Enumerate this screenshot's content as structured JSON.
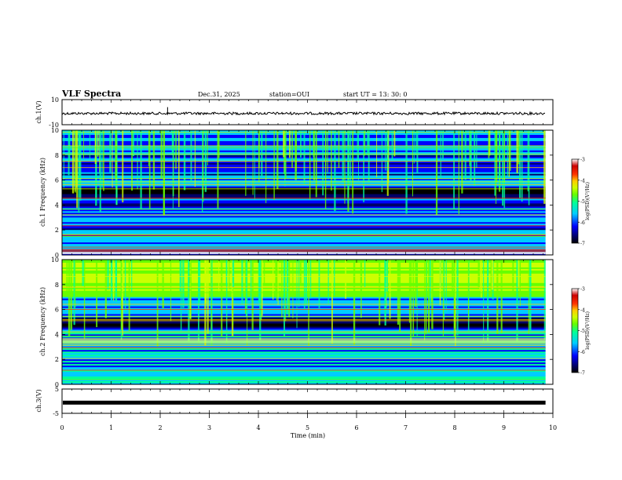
{
  "header": {
    "title": "VLF Spectra",
    "date": "Dec.31, 2025",
    "station": "station=OUI",
    "start_ut": "start  UT  =   13: 30: 0"
  },
  "chart_data": [
    {
      "type": "line",
      "name": "ch1-waveform",
      "ylabel": "ch.1(V)",
      "ylim": [
        -10,
        10
      ],
      "ytick_labels": [
        "10",
        "-10"
      ],
      "xlim": [
        0,
        10
      ],
      "level": -1.0,
      "end_x": 9.85
    },
    {
      "type": "heatmap",
      "name": "ch1-spectrogram",
      "ylabel": "ch.1 Frequency (kHz)",
      "ylim": [
        0,
        10
      ],
      "ytick_labels": [
        "0",
        "2",
        "4",
        "6",
        "8",
        "10"
      ],
      "yticks": [
        0,
        2,
        4,
        6,
        8,
        10
      ],
      "xlim": [
        0,
        10
      ],
      "end_x": 9.85
    },
    {
      "type": "heatmap",
      "name": "ch2-spectrogram",
      "ylabel": "ch.2 Frequency (kHz)",
      "ylim": [
        0,
        10
      ],
      "ytick_labels": [
        "0",
        "2",
        "4",
        "6",
        "8",
        "10"
      ],
      "yticks": [
        0,
        2,
        4,
        6,
        8,
        10
      ],
      "xlim": [
        0,
        10
      ],
      "end_x": 9.85
    },
    {
      "type": "line",
      "name": "ch3-waveform",
      "ylabel": "ch.3(V)",
      "ylim": [
        -5,
        5
      ],
      "ytick_labels": [
        "5",
        "-5"
      ],
      "xlim": [
        0,
        10
      ],
      "level": -0.6,
      "end_x": 9.85
    }
  ],
  "colorbar": {
    "label": "log(PSD)(V²/Hz)",
    "range": [
      -7,
      -3
    ],
    "tick_labels": [
      "-3",
      "-4",
      "-5",
      "-6",
      "-7"
    ],
    "ticks": [
      -3,
      -4,
      -5,
      -6,
      -7
    ],
    "colors": [
      "#000000",
      "#000066",
      "#0000ff",
      "#00ccff",
      "#00ff99",
      "#66ff00",
      "#ccff00",
      "#ffcc00",
      "#ff3300",
      "#cc0000",
      "#ffffff"
    ]
  },
  "xaxis": {
    "label": "Time  (min)",
    "ticks": [
      0,
      1,
      2,
      3,
      4,
      5,
      6,
      7,
      8,
      9,
      10
    ],
    "tick_labels": [
      "0",
      "1",
      "2",
      "3",
      "4",
      "5",
      "6",
      "7",
      "8",
      "9",
      "10"
    ]
  }
}
